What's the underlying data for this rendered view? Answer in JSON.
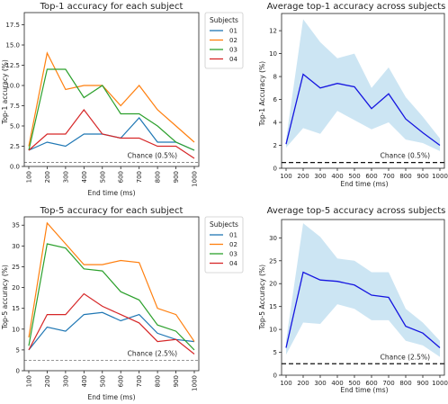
{
  "chart_data": [
    {
      "type": "line",
      "title": "Top-1 accuracy for each subject",
      "xlabel": "End time (ms)",
      "ylabel": "Top-1 accuracy (%)",
      "x": [
        100,
        200,
        300,
        400,
        500,
        600,
        700,
        800,
        900,
        1000
      ],
      "xticks": [
        "100",
        "200",
        "300",
        "400",
        "500",
        "600",
        "700",
        "800",
        "900",
        "1000"
      ],
      "ylim": [
        0,
        19
      ],
      "yticks": [
        "0.0",
        "2.5",
        "5.0",
        "7.5",
        "10.0",
        "12.5",
        "15.0",
        "17.5"
      ],
      "yticks_values": [
        0,
        2.5,
        5,
        7.5,
        10,
        12.5,
        15,
        17.5
      ],
      "legend_title": "Subjects",
      "legend_position": "outside-right",
      "series": [
        {
          "name": "01",
          "color": "#1f77b4",
          "values": [
            2,
            3,
            2.5,
            4,
            4,
            3.5,
            6,
            3,
            3,
            2
          ]
        },
        {
          "name": "02",
          "color": "#ff7f0e",
          "values": [
            2.5,
            14,
            9.5,
            10,
            10,
            7.5,
            10,
            7,
            5,
            3
          ]
        },
        {
          "name": "03",
          "color": "#2ca02c",
          "values": [
            2,
            12,
            12,
            8.5,
            10,
            6.5,
            6.5,
            5,
            3,
            2
          ]
        },
        {
          "name": "04",
          "color": "#d62728",
          "values": [
            2,
            4,
            4,
            7,
            4,
            3.5,
            3.5,
            2.5,
            2.5,
            1
          ]
        }
      ],
      "chance": {
        "value": 0.5,
        "label": "Chance (0.5%)"
      }
    },
    {
      "type": "area",
      "title": "Average top-1 accuracy across subjects",
      "xlabel": "End time (ms)",
      "ylabel": "Top-1 Accuracy (%)",
      "x": [
        100,
        200,
        300,
        400,
        500,
        600,
        700,
        800,
        900,
        1000
      ],
      "xticks": [
        "100",
        "200",
        "300",
        "400",
        "500",
        "600",
        "700",
        "800",
        "900",
        "1000"
      ],
      "ylim": [
        0,
        13.5
      ],
      "yticks": [
        "0",
        "2",
        "4",
        "6",
        "8",
        "10",
        "12"
      ],
      "yticks_values": [
        0,
        2,
        4,
        6,
        8,
        10,
        12
      ],
      "mean": [
        2.1,
        8.2,
        7,
        7.4,
        7.1,
        5.2,
        6.5,
        4.3,
        3.1,
        2
      ],
      "lower": [
        1.8,
        3.5,
        3,
        5,
        4.2,
        3.4,
        4,
        2.5,
        2.2,
        1.5
      ],
      "upper": [
        2.5,
        13,
        11,
        9.6,
        10,
        7,
        8.8,
        6.2,
        4.5,
        2.6
      ],
      "line_color": "#1515e0",
      "band_color": "#cce5f3",
      "chance": {
        "value": 0.5,
        "label": "Chance (0.5%)"
      }
    },
    {
      "type": "line",
      "title": "Top-5 accuracy for each subject",
      "xlabel": "End time (ms)",
      "ylabel": "Top-5 accuracy (%)",
      "x": [
        100,
        200,
        300,
        400,
        500,
        600,
        700,
        800,
        900,
        1000
      ],
      "xticks": [
        "100",
        "200",
        "300",
        "400",
        "500",
        "600",
        "700",
        "800",
        "900",
        "1000"
      ],
      "ylim": [
        0,
        37
      ],
      "yticks": [
        "0",
        "5",
        "10",
        "15",
        "20",
        "25",
        "30",
        "35"
      ],
      "yticks_values": [
        0,
        5,
        10,
        15,
        20,
        25,
        30,
        35
      ],
      "legend_title": "Subjects",
      "legend_position": "outside-right",
      "series": [
        {
          "name": "01",
          "color": "#1f77b4",
          "values": [
            5,
            10.5,
            9.5,
            13.5,
            14,
            12,
            13.5,
            9,
            7.5,
            7
          ]
        },
        {
          "name": "02",
          "color": "#ff7f0e",
          "values": [
            8,
            35.5,
            30.5,
            25.5,
            25.5,
            26.5,
            26,
            15,
            13.5,
            7
          ]
        },
        {
          "name": "03",
          "color": "#2ca02c",
          "values": [
            6,
            30.5,
            29.5,
            24.5,
            24,
            19,
            17,
            11,
            9.5,
            5
          ]
        },
        {
          "name": "04",
          "color": "#d62728",
          "values": [
            5,
            13.5,
            13.5,
            18.5,
            15.5,
            13.5,
            11.5,
            7,
            7.5,
            4
          ]
        }
      ],
      "chance": {
        "value": 2.5,
        "label": "Chance (2.5%)"
      }
    },
    {
      "type": "area",
      "title": "Average top-5 accuracy across subjects",
      "xlabel": "End time (ms)",
      "ylabel": "Top-5 Accuracy (%)",
      "x": [
        100,
        200,
        300,
        400,
        500,
        600,
        700,
        800,
        900,
        1000
      ],
      "xticks": [
        "100",
        "200",
        "300",
        "400",
        "500",
        "600",
        "700",
        "800",
        "900",
        "1000"
      ],
      "ylim": [
        0,
        34
      ],
      "yticks": [
        "0",
        "5",
        "10",
        "15",
        "20",
        "25",
        "30"
      ],
      "yticks_values": [
        0,
        5,
        10,
        15,
        20,
        25,
        30
      ],
      "mean": [
        6,
        22.5,
        20.8,
        20.5,
        19.7,
        17.5,
        17,
        10.7,
        9.2,
        6
      ],
      "lower": [
        4.5,
        11.5,
        11.2,
        15.5,
        14.5,
        12,
        12,
        7.5,
        6.5,
        4
      ],
      "upper": [
        7.5,
        33.2,
        30.2,
        25.5,
        25,
        22.5,
        22.5,
        14.5,
        11.5,
        7.5
      ],
      "line_color": "#1515e0",
      "band_color": "#cce5f3",
      "chance": {
        "value": 2.5,
        "label": "Chance (2.5%)"
      }
    }
  ]
}
